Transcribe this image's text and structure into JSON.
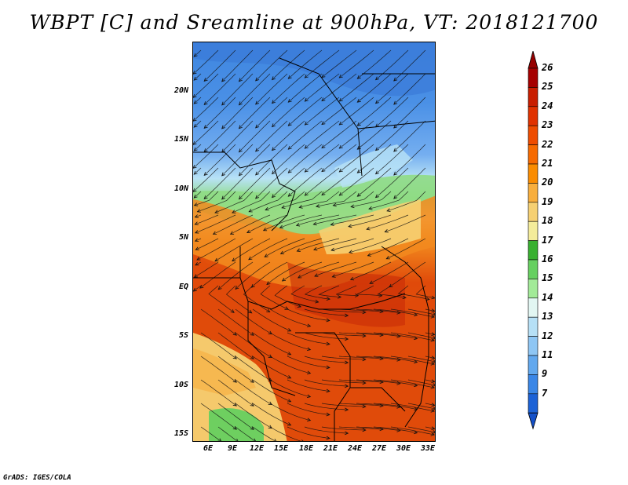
{
  "title": "WBPT [C] and Sreamline at 900hPa, VT: 2018121700",
  "credit": "GrADS: IGES/COLA",
  "y_ticks": [
    "20N",
    "15N",
    "10N",
    "5N",
    "EQ",
    "5S",
    "10S",
    "15S"
  ],
  "x_ticks": [
    "6E",
    "9E",
    "12E",
    "15E",
    "18E",
    "21E",
    "24E",
    "27E",
    "30E",
    "33E"
  ],
  "colorbar": {
    "labels": [
      "26",
      "25",
      "24",
      "23",
      "22",
      "21",
      "20",
      "19",
      "18",
      "17",
      "16",
      "15",
      "14",
      "13",
      "12",
      "11",
      "9",
      "7"
    ],
    "colors": [
      "#a50000",
      "#c81e00",
      "#e03200",
      "#ee4c00",
      "#f66a00",
      "#fa8c00",
      "#f8ae3c",
      "#f6d072",
      "#f4ec9a",
      "#38b030",
      "#66d060",
      "#a2ea98",
      "#e2f6f2",
      "#b6e0f6",
      "#8ec6f4",
      "#62a8ee",
      "#3a86e6",
      "#1c62d6"
    ],
    "top_arrow_color": "#960000",
    "bottom_arrow_color": "#1450c8"
  },
  "map_colors": {
    "cold": "#3f86e0",
    "cool": "#74aef0",
    "cyan": "#b8e2f6",
    "green": "#7ed474",
    "lightgreen": "#b4e8a2",
    "yellow": "#f6e49a",
    "orange_light": "#f6b64e",
    "orange": "#f28a1e",
    "red": "#e04a0a",
    "deep_red": "#c82c06"
  }
}
